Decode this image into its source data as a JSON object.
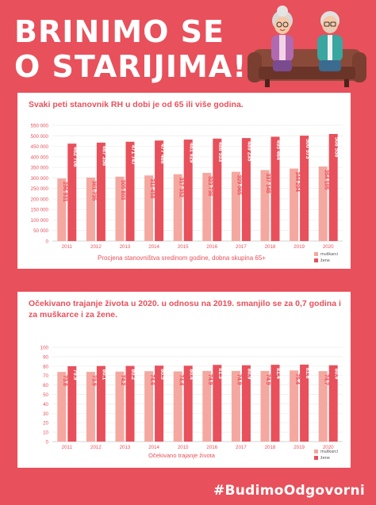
{
  "header": {
    "title_line1": "BRINIMO SE",
    "title_line2": "O STARIJIMA!"
  },
  "hashtag": "#BudimoOdgovorni",
  "colors": {
    "background": "#e8505b",
    "men": "#f4a8a0",
    "women": "#e8505b",
    "card": "#ffffff"
  },
  "illustration": {
    "icon": "elderly-couple-on-sofa-icon"
  },
  "chart_data": [
    {
      "type": "bar",
      "title": "Svaki peti stanovnik RH u dobi je od 65 ili više godina.",
      "xlabel": "Procjena stanovništva sredinom godine, dobna skupina 65+",
      "ylabel": "",
      "categories": [
        "2011",
        "2012",
        "2013",
        "2014",
        "2015",
        "2016",
        "2017",
        "2018",
        "2019",
        "2020"
      ],
      "ylim": [
        0,
        550000
      ],
      "yticks": [
        0,
        50000,
        100000,
        150000,
        200000,
        250000,
        300000,
        350000,
        400000,
        450000,
        500000,
        550000
      ],
      "ytick_labels": [
        "0",
        "50 000",
        "100 000",
        "150 000",
        "200 000",
        "250 000",
        "300 000",
        "350 000",
        "400 000",
        "450 000",
        "500 000",
        "550 000"
      ],
      "grid": true,
      "legend": "bottom-right",
      "series": [
        {
          "name": "muškarci",
          "color": "#f4a8a0",
          "values": [
            296931,
            301735,
            305803,
            311458,
            317352,
            323736,
            329065,
            337148,
            344294,
            354105
          ],
          "labels": [
            "296 931",
            "301 735",
            "305 803",
            "311 458",
            "317 352",
            "323 736",
            "329 065",
            "337 148",
            "344 294",
            "354 105"
          ]
        },
        {
          "name": "žene",
          "color": "#e8505b",
          "values": [
            462706,
            467356,
            471747,
            477466,
            481929,
            486533,
            489235,
            495464,
            500573,
            508558
          ],
          "labels": [
            "462 706",
            "467 356",
            "471 747",
            "477 466",
            "481 929",
            "486 533",
            "489 235",
            "495 464",
            "500 573",
            "508 558"
          ]
        }
      ]
    },
    {
      "type": "bar",
      "title": "Očekivano trajanje života u 2020. u odnosu na 2019. smanjilo se za 0,7 godina i za muškarce i za žene.",
      "xlabel": "Očekivano trajanje života",
      "ylabel": "",
      "categories": [
        "2011",
        "2012",
        "2013",
        "2014",
        "2015",
        "2016",
        "2017",
        "2018",
        "2019",
        "2020"
      ],
      "ylim": [
        0,
        100
      ],
      "yticks": [
        0,
        10,
        20,
        30,
        40,
        50,
        60,
        70,
        80,
        90,
        100
      ],
      "ytick_labels": [
        "0",
        "10",
        "20",
        "30",
        "40",
        "50",
        "60",
        "70",
        "80",
        "90",
        "100"
      ],
      "grid": true,
      "legend": "bottom-right",
      "series": [
        {
          "name": "muškarci",
          "color": "#f4a8a0",
          "values": [
            73.8,
            73.9,
            74.2,
            74.6,
            74.4,
            74.9,
            74.9,
            74.9,
            75.4,
            74.7
          ],
          "labels": [
            "73.8",
            "73.9",
            "74.2",
            "74.6",
            "74.4",
            "74.9",
            "74.9",
            "74.9",
            "75.4",
            "74.7"
          ]
        },
        {
          "name": "žene",
          "color": "#e8505b",
          "values": [
            79.9,
            80.1,
            80.2,
            80.5,
            80.4,
            81.3,
            80.9,
            81.4,
            81.6,
            80.9
          ],
          "labels": [
            "79.9",
            "80.1",
            "80.2",
            "80.5",
            "80.4",
            "81.3",
            "80.9",
            "81.4",
            "81.6",
            "80.9"
          ]
        }
      ]
    }
  ]
}
